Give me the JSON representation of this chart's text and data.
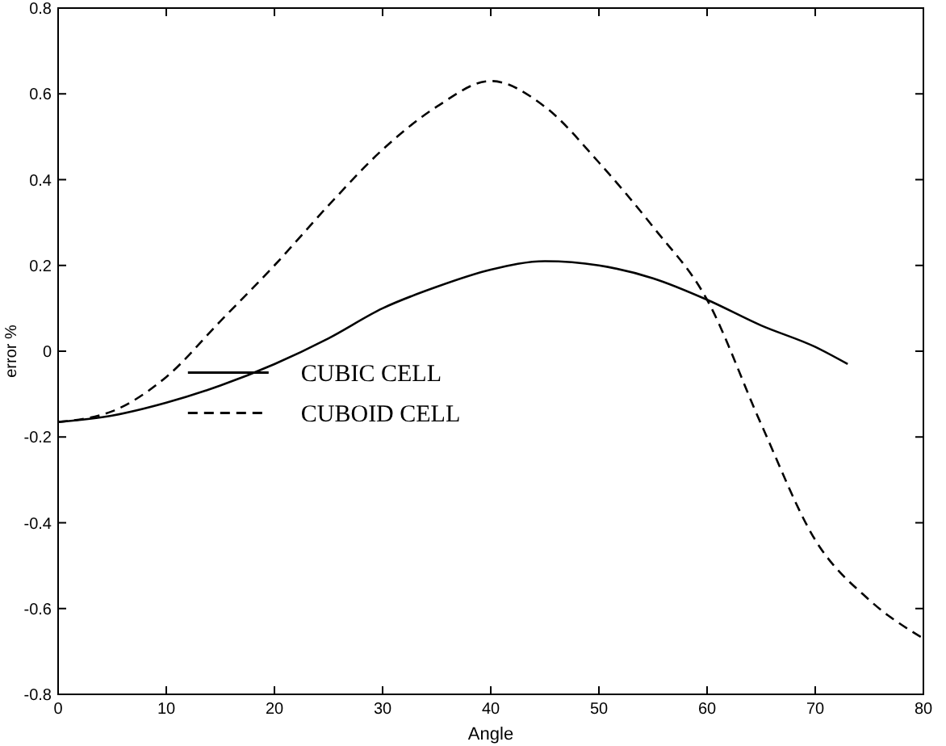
{
  "chart_data": {
    "type": "line",
    "xlabel": "Angle",
    "ylabel": "error %",
    "xlim": [
      0,
      80
    ],
    "ylim": [
      -0.8,
      0.8
    ],
    "xticks": [
      0,
      10,
      20,
      30,
      40,
      50,
      60,
      70,
      80
    ],
    "yticks": [
      -0.8,
      -0.6,
      -0.4,
      -0.2,
      0,
      0.2,
      0.4,
      0.6,
      0.8
    ],
    "grid": false,
    "legend": "left",
    "series": [
      {
        "name": "CUBIC CELL",
        "color": "#000000",
        "line_style": "solid",
        "x": [
          0,
          5,
          10,
          15,
          20,
          25,
          30,
          35,
          40,
          45,
          50,
          55,
          60,
          65,
          70,
          73
        ],
        "values": [
          -0.165,
          -0.15,
          -0.12,
          -0.08,
          -0.03,
          0.03,
          0.1,
          0.15,
          0.19,
          0.21,
          0.2,
          0.17,
          0.12,
          0.06,
          0.01,
          -0.03
        ]
      },
      {
        "name": "CUBOID CELL",
        "color": "#000000",
        "line_style": "dashed",
        "x": [
          0,
          5,
          10,
          15,
          20,
          25,
          30,
          35,
          40,
          45,
          50,
          55,
          60,
          65,
          70,
          75,
          80
        ],
        "values": [
          -0.165,
          -0.14,
          -0.06,
          0.07,
          0.2,
          0.34,
          0.47,
          0.57,
          0.63,
          0.57,
          0.44,
          0.29,
          0.12,
          -0.17,
          -0.44,
          -0.58,
          -0.67
        ]
      }
    ]
  }
}
